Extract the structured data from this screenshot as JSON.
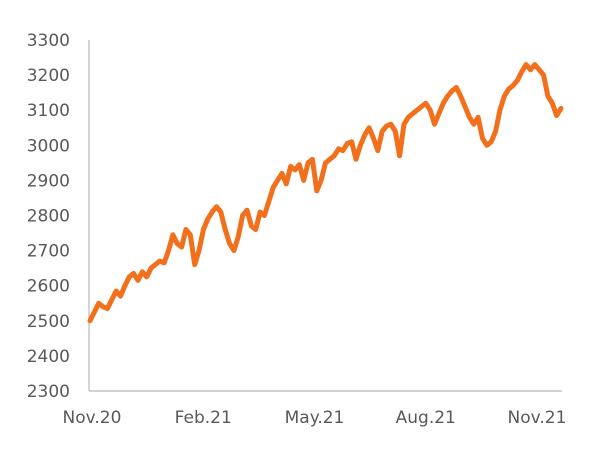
{
  "chart_data": {
    "type": "line",
    "title": "",
    "xlabel": "",
    "ylabel": "",
    "ylim": [
      2300,
      3300
    ],
    "y_ticks": [
      "3300",
      "3200",
      "3100",
      "3000",
      "2900",
      "2800",
      "2700",
      "2600",
      "2500",
      "2400",
      "2300"
    ],
    "x_ticks": [
      "Nov.20",
      "Feb.21",
      "May.21",
      "Aug.21",
      "Nov.21"
    ],
    "grid": false,
    "legend": "none",
    "colors": {
      "series": "#f26f1c",
      "axis": "#b8b8b8",
      "text": "#595959"
    },
    "series": [
      {
        "values": [
          2500,
          2525,
          2550,
          2540,
          2535,
          2560,
          2585,
          2570,
          2600,
          2625,
          2635,
          2615,
          2640,
          2625,
          2650,
          2660,
          2670,
          2665,
          2700,
          2745,
          2720,
          2710,
          2760,
          2745,
          2660,
          2700,
          2760,
          2790,
          2810,
          2825,
          2810,
          2760,
          2720,
          2700,
          2740,
          2800,
          2815,
          2770,
          2760,
          2810,
          2800,
          2840,
          2880,
          2900,
          2920,
          2890,
          2940,
          2930,
          2945,
          2900,
          2950,
          2960,
          2870,
          2900,
          2950,
          2960,
          2970,
          2990,
          2985,
          3005,
          3010,
          2960,
          3000,
          3030,
          3050,
          3020,
          2985,
          3040,
          3055,
          3060,
          3040,
          2970,
          3060,
          3080,
          3090,
          3100,
          3110,
          3120,
          3100,
          3060,
          3090,
          3120,
          3140,
          3155,
          3165,
          3140,
          3110,
          3080,
          3060,
          3080,
          3020,
          3000,
          3010,
          3040,
          3100,
          3140,
          3160,
          3170,
          3185,
          3210,
          3230,
          3215,
          3230,
          3215,
          3200,
          3140,
          3120,
          3085,
          3105
        ]
      }
    ]
  }
}
